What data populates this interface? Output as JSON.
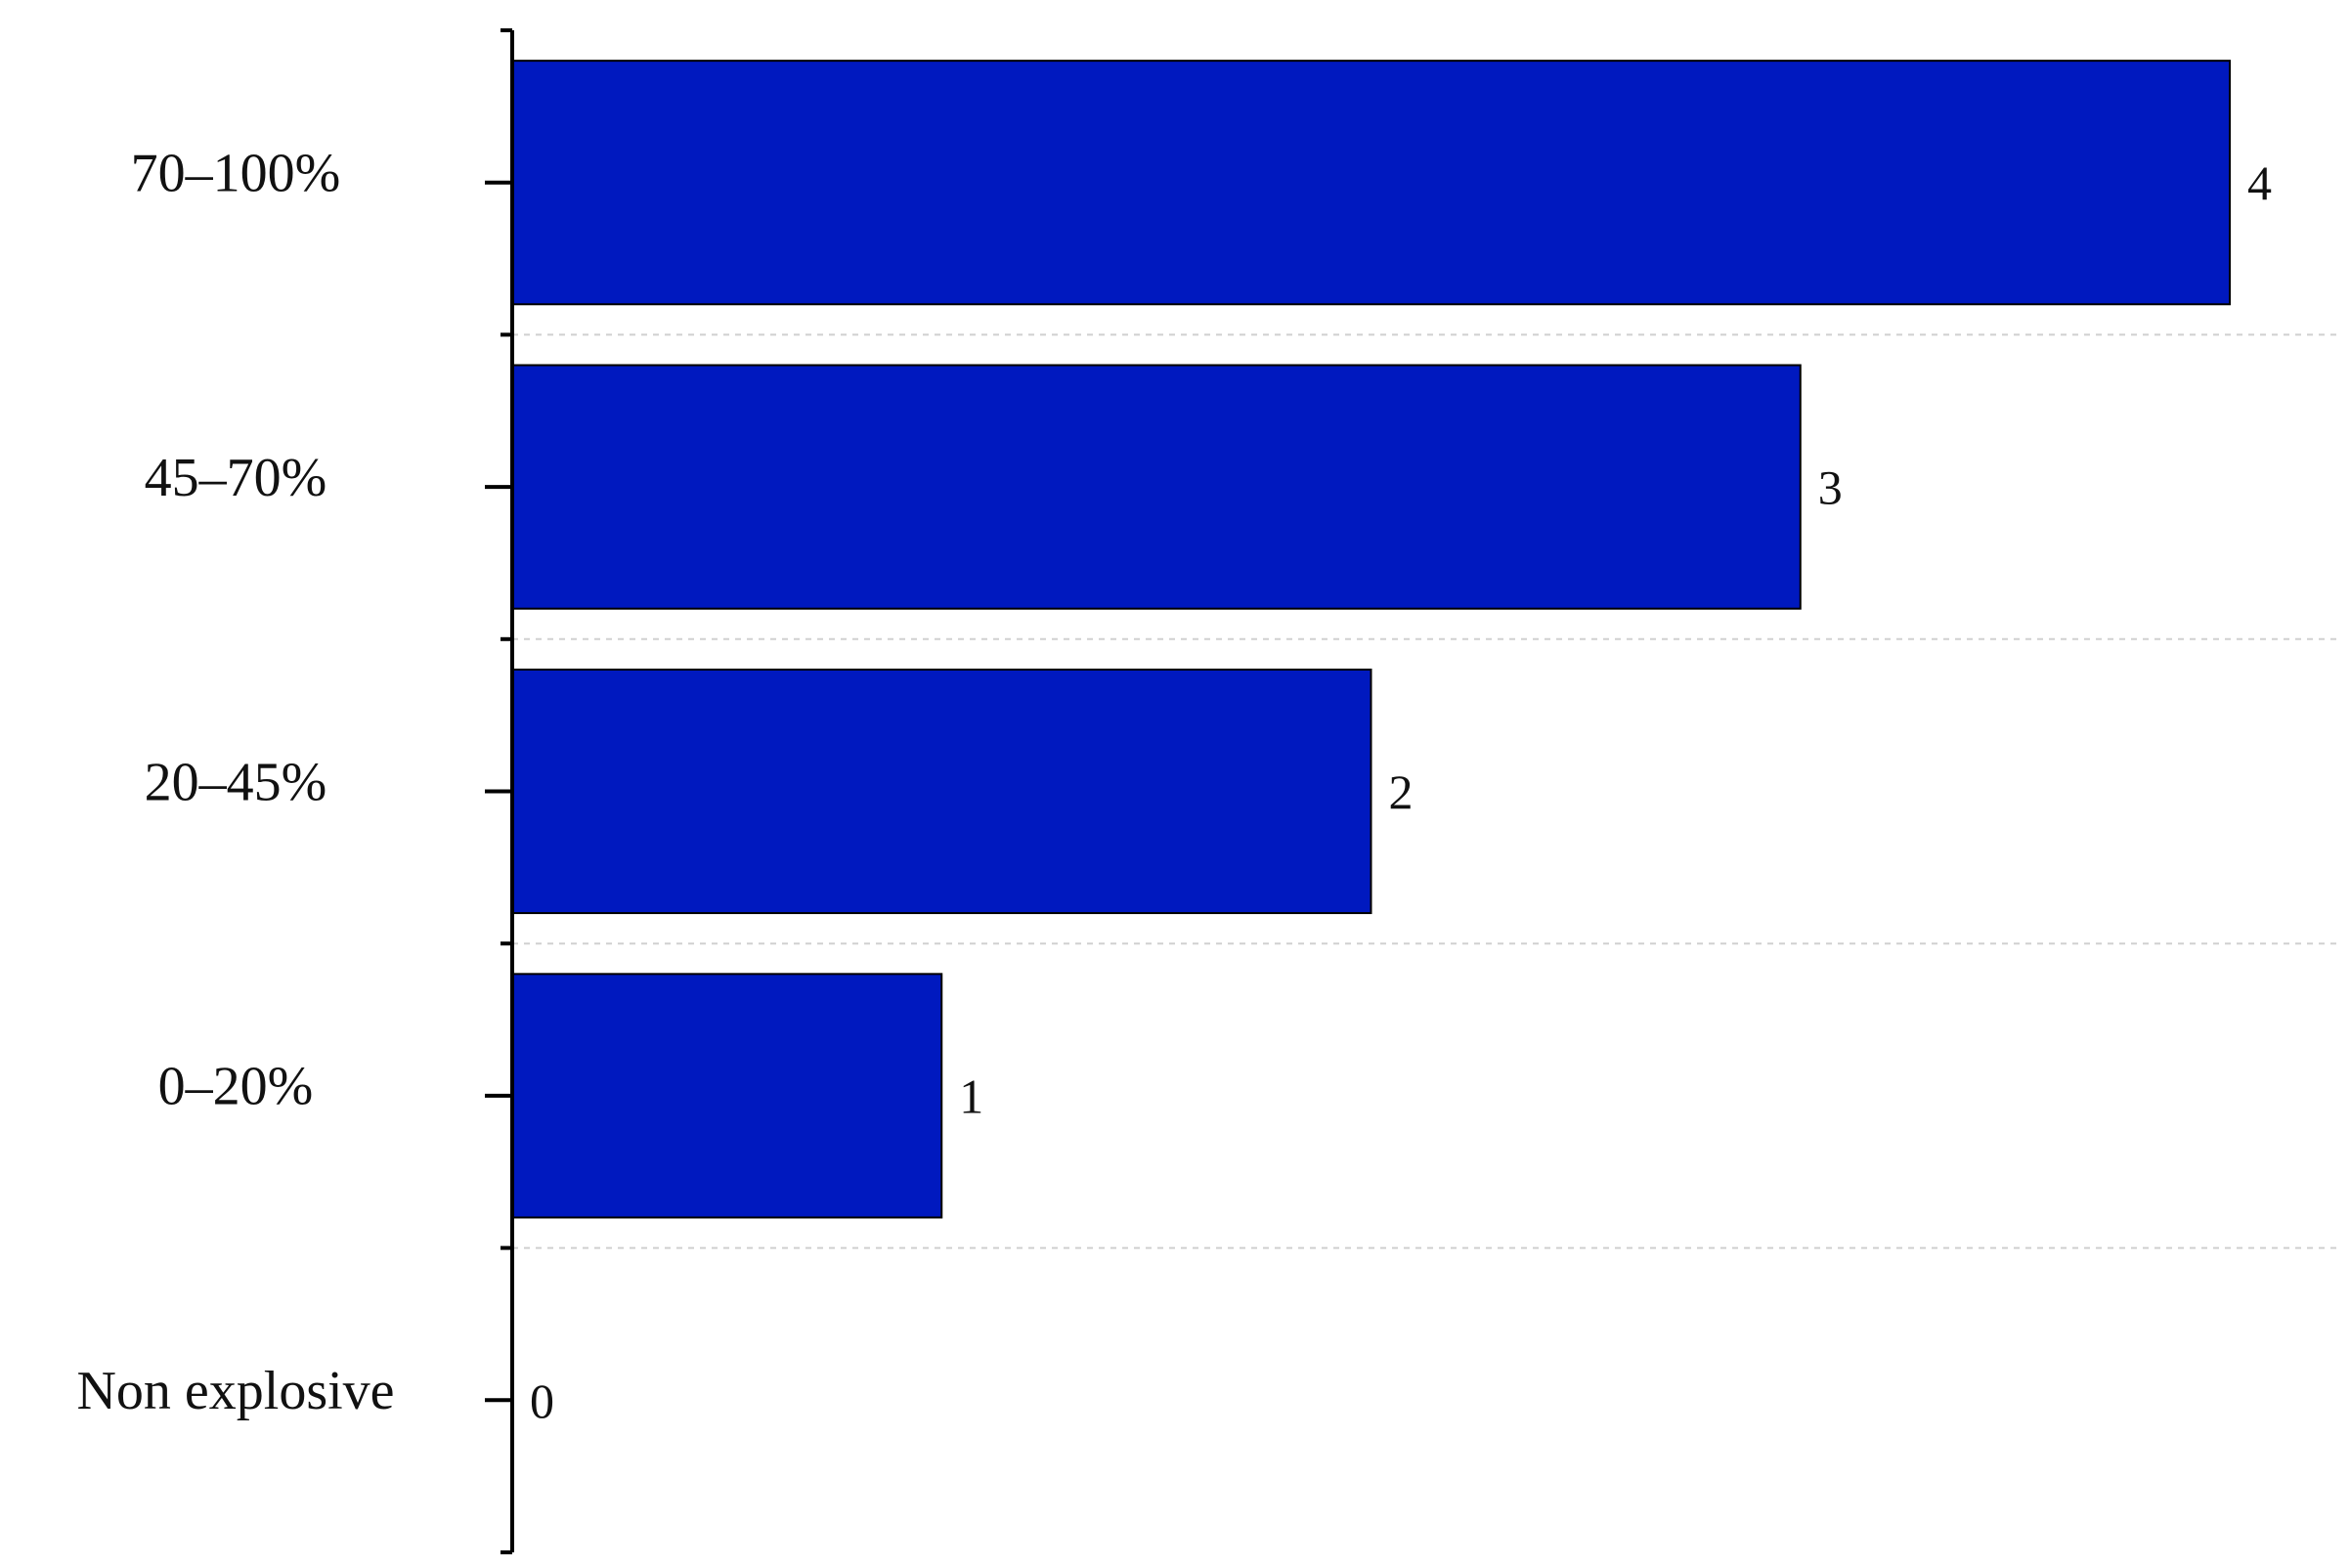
{
  "chart_data": {
    "type": "bar",
    "orientation": "horizontal",
    "categories": [
      "70–100%",
      "45–70%",
      "20–45%",
      "0–20%",
      "Non explosive"
    ],
    "values": [
      4,
      3,
      2,
      1,
      0
    ],
    "color": "#0019bf",
    "grid": true
  }
}
